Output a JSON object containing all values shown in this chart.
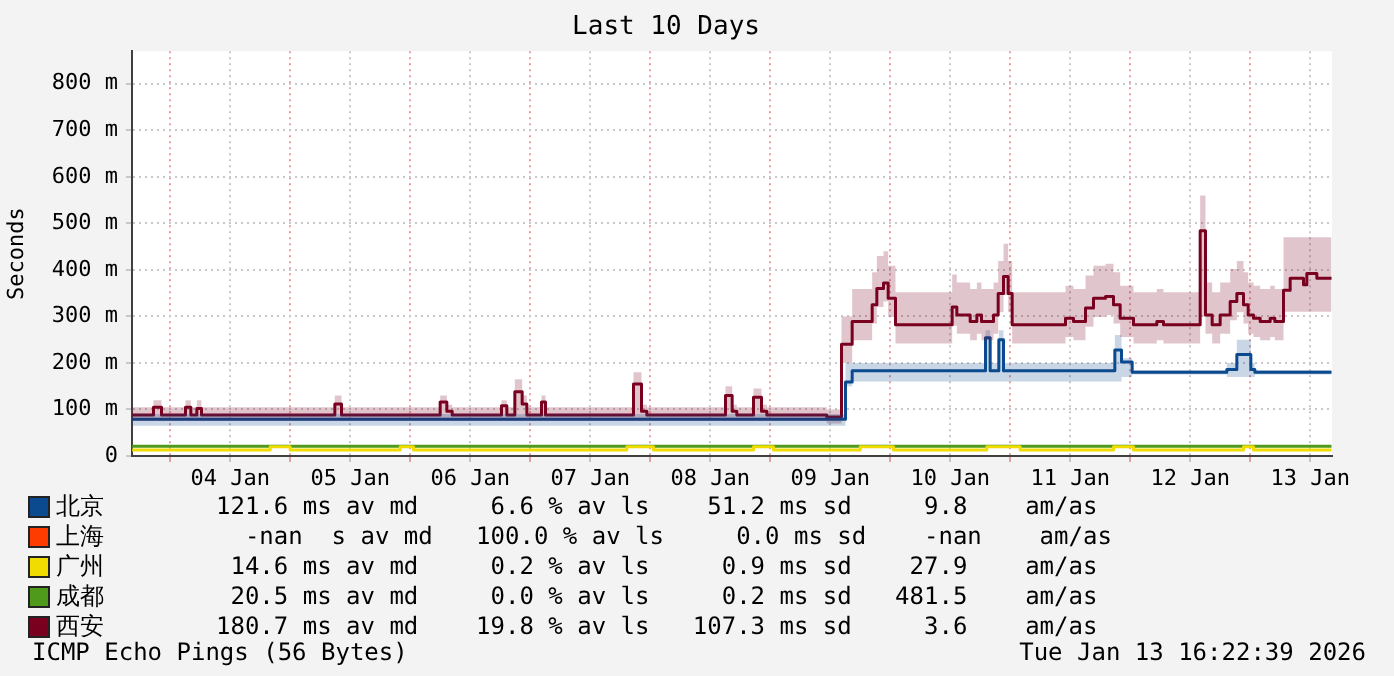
{
  "chart_data": {
    "type": "step",
    "title": "Last 10 Days",
    "ylabel": "Seconds",
    "xlim": [
      "2026-01-03T16:22",
      "2026-01-13T16:22"
    ],
    "xticks": [
      {
        "value": "2026-01-04T00:00",
        "label": null
      },
      {
        "value": "2026-01-04T12:00",
        "label": "04 Jan"
      },
      {
        "value": "2026-01-05T00:00",
        "label": null
      },
      {
        "value": "2026-01-05T12:00",
        "label": "05 Jan"
      },
      {
        "value": "2026-01-06T00:00",
        "label": null
      },
      {
        "value": "2026-01-06T12:00",
        "label": "06 Jan"
      },
      {
        "value": "2026-01-07T00:00",
        "label": null
      },
      {
        "value": "2026-01-07T12:00",
        "label": "07 Jan"
      },
      {
        "value": "2026-01-08T00:00",
        "label": null
      },
      {
        "value": "2026-01-08T12:00",
        "label": "08 Jan"
      },
      {
        "value": "2026-01-09T00:00",
        "label": null
      },
      {
        "value": "2026-01-09T12:00",
        "label": "09 Jan"
      },
      {
        "value": "2026-01-10T00:00",
        "label": null
      },
      {
        "value": "2026-01-10T12:00",
        "label": "10 Jan"
      },
      {
        "value": "2026-01-11T00:00",
        "label": null
      },
      {
        "value": "2026-01-11T12:00",
        "label": "11 Jan"
      },
      {
        "value": "2026-01-12T00:00",
        "label": null
      },
      {
        "value": "2026-01-12T12:00",
        "label": "12 Jan"
      },
      {
        "value": "2026-01-13T00:00",
        "label": null
      },
      {
        "value": "2026-01-13T12:00",
        "label": "13 Jan"
      }
    ],
    "ylim": [
      0,
      870
    ],
    "yticks": [
      0,
      {
        "value": 100,
        "label": "100 m"
      },
      {
        "value": 200,
        "label": "200 m"
      },
      {
        "value": 300,
        "label": "300 m"
      },
      {
        "value": 400,
        "label": "400 m"
      },
      {
        "value": 500,
        "label": "500 m"
      },
      {
        "value": 600,
        "label": "600 m"
      },
      {
        "value": 700,
        "label": "700 m"
      },
      {
        "value": 800,
        "label": "800 m"
      }
    ],
    "grid": true,
    "legend": "bottom",
    "line_style": "solid",
    "series": [
      {
        "name": "北京",
        "color": "#0b4a8f",
        "x": [
          "2026-01-03T16:24",
          "2026-01-09T15:04",
          "2026-01-09T16:24",
          "2026-01-10T19:04",
          "2026-01-10T20:00",
          "2026-01-10T21:44",
          "2026-01-10T22:40",
          "2026-01-11T20:56",
          "2026-01-11T22:16",
          "2026-01-12T00:24",
          "2026-01-12T19:20",
          "2026-01-12T21:20",
          "2026-01-13T00:08",
          "2026-01-13T00:56",
          "2026-01-13T16:16"
        ],
        "values": [
          79,
          159,
          183,
          254,
          183,
          250,
          183,
          228,
          202,
          180,
          186,
          218,
          186,
          180,
          180
        ],
        "lower": [
          65,
          150,
          160,
          160,
          160,
          160,
          160,
          160,
          170,
          175,
          170,
          170,
          170,
          175,
          175
        ],
        "upper": [
          90,
          200,
          200,
          270,
          200,
          270,
          200,
          260,
          210,
          185,
          200,
          250,
          200,
          185,
          185
        ]
      },
      {
        "name": "上海",
        "color": "#ff3c00"
      },
      {
        "name": "广州",
        "color": "#f0dc00",
        "x": [
          "2026-01-03T16:24",
          "2026-01-04T20:00",
          "2026-01-05T00:00",
          "2026-01-05T22:00",
          "2026-01-06T00:40",
          "2026-01-07T19:20",
          "2026-01-08T00:40",
          "2026-01-08T20:40",
          "2026-01-09T00:40",
          "2026-01-09T18:00",
          "2026-01-10T00:40",
          "2026-01-10T19:20",
          "2026-01-11T02:00",
          "2026-01-11T20:40",
          "2026-01-12T00:40",
          "2026-01-12T22:40",
          "2026-01-13T00:40",
          "2026-01-13T16:16"
        ],
        "values": [
          13,
          20,
          13,
          20,
          13,
          20,
          13,
          20,
          13,
          20,
          13,
          20,
          13,
          20,
          13,
          20,
          13,
          13
        ]
      },
      {
        "name": "成都",
        "color": "#4f9a1a",
        "x": [
          "2026-01-03T16:24",
          "2026-01-13T16:16"
        ],
        "values": [
          21,
          21
        ]
      },
      {
        "name": "西安",
        "color": "#7a0020",
        "x": [
          "2026-01-03T16:24",
          "2026-01-03T20:40",
          "2026-01-03T22:16",
          "2026-01-04T03:04",
          "2026-01-04T04:08",
          "2026-01-04T05:20",
          "2026-01-04T06:16",
          "2026-01-05T08:56",
          "2026-01-05T10:16",
          "2026-01-06T06:00",
          "2026-01-06T07:20",
          "2026-01-06T08:24",
          "2026-01-06T18:16",
          "2026-01-06T19:20",
          "2026-01-06T20:56",
          "2026-01-06T22:24",
          "2026-01-06T23:20",
          "2026-01-07T02:16",
          "2026-01-07T03:04",
          "2026-01-07T20:40",
          "2026-01-07T22:16",
          "2026-01-07T23:20",
          "2026-01-08T15:04",
          "2026-01-08T16:24",
          "2026-01-08T17:20",
          "2026-01-08T20:40",
          "2026-01-08T22:16",
          "2026-01-08T23:20",
          "2026-01-09T11:20",
          "2026-01-09T14:16",
          "2026-01-09T16:24",
          "2026-01-09T20:24",
          "2026-01-09T21:20",
          "2026-01-09T22:40",
          "2026-01-09T23:36",
          "2026-01-10T01:04",
          "2026-01-10T12:24",
          "2026-01-10T13:20",
          "2026-01-10T16:00",
          "2026-01-10T17:20",
          "2026-01-10T18:16",
          "2026-01-10T20:40",
          "2026-01-10T21:36",
          "2026-01-10T22:40",
          "2026-01-10T23:36",
          "2026-01-11T00:24",
          "2026-01-11T11:04",
          "2026-01-11T12:40",
          "2026-01-11T15:04",
          "2026-01-11T16:40",
          "2026-01-11T19:04",
          "2026-01-11T20:40",
          "2026-01-11T22:00",
          "2026-01-12T00:40",
          "2026-01-12T05:20",
          "2026-01-12T06:40",
          "2026-01-12T14:00",
          "2026-01-12T15:04",
          "2026-01-12T16:24",
          "2026-01-12T18:00",
          "2026-01-12T20:00",
          "2026-01-12T21:20",
          "2026-01-12T22:40",
          "2026-01-12T23:36",
          "2026-01-13T00:40",
          "2026-01-13T02:00",
          "2026-01-13T04:00",
          "2026-01-13T04:56",
          "2026-01-13T06:40",
          "2026-01-13T08:00",
          "2026-01-13T10:40",
          "2026-01-13T11:20",
          "2026-01-13T13:20",
          "2026-01-13T16:16"
        ],
        "values": [
          88,
          105,
          88,
          105,
          88,
          102,
          88,
          112,
          88,
          116,
          96,
          88,
          108,
          88,
          138,
          112,
          88,
          116,
          88,
          155,
          96,
          88,
          130,
          96,
          88,
          126,
          96,
          88,
          84,
          240,
          289,
          325,
          360,
          372,
          339,
          282,
          320,
          303,
          289,
          303,
          289,
          303,
          349,
          386,
          349,
          282,
          296,
          289,
          318,
          339,
          343,
          325,
          296,
          282,
          289,
          282,
          484,
          303,
          282,
          303,
          332,
          349,
          325,
          303,
          296,
          289,
          296,
          289,
          356,
          382,
          368,
          392,
          382,
          382
        ],
        "lower": [
          75,
          75,
          75,
          75,
          75,
          75,
          75,
          75,
          75,
          75,
          75,
          75,
          75,
          75,
          75,
          75,
          75,
          75,
          75,
          75,
          75,
          75,
          75,
          75,
          75,
          75,
          75,
          75,
          70,
          200,
          249,
          285,
          320,
          332,
          299,
          242,
          280,
          263,
          249,
          263,
          249,
          263,
          309,
          346,
          309,
          242,
          256,
          249,
          278,
          299,
          303,
          285,
          256,
          242,
          249,
          242,
          300,
          263,
          242,
          263,
          292,
          309,
          285,
          263,
          256,
          249,
          256,
          249,
          310,
          310,
          310,
          310,
          310,
          310
        ],
        "upper": [
          105,
          120,
          105,
          120,
          105,
          120,
          105,
          130,
          105,
          130,
          110,
          105,
          120,
          105,
          165,
          130,
          105,
          130,
          105,
          180,
          110,
          105,
          150,
          110,
          105,
          145,
          110,
          105,
          100,
          300,
          359,
          395,
          430,
          440,
          409,
          352,
          390,
          373,
          359,
          373,
          359,
          373,
          419,
          456,
          419,
          352,
          366,
          359,
          388,
          409,
          413,
          395,
          366,
          352,
          359,
          352,
          560,
          373,
          352,
          373,
          402,
          419,
          395,
          373,
          366,
          359,
          366,
          359,
          470,
          470,
          470,
          470,
          470,
          470
        ]
      }
    ],
    "annotations": [
      "121.6 ms av md     6.6 % av ls    51.2 ms sd     9.8    am/as",
      "  -nan  s av md   100.0 % av ls     0.0 ms sd    -nan    am/as",
      " 14.6 ms av md     0.2 % av ls     0.9 ms sd    27.9    am/as",
      " 20.5 ms av md     0.0 % av ls     0.2 ms sd   481.5    am/as",
      "180.7 ms av md    19.8 % av ls   107.3 ms sd     3.6    am/as",
      "ICMP Echo Pings (56 Bytes)",
      "Tue Jan 13 16:22:39 2026"
    ]
  }
}
